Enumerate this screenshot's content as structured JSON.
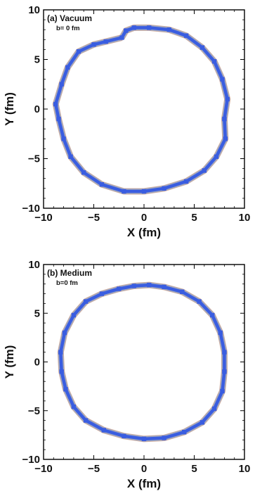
{
  "chart_data": [
    {
      "type": "scatter",
      "title": "(a) Vacuum",
      "subtitle": "b= 0 fm",
      "xlabel": "X (fm)",
      "ylabel": "Y (fm)",
      "xlim": [
        -10,
        10
      ],
      "ylim": [
        -10,
        10
      ],
      "xticks": [
        "−10",
        "−5",
        "0",
        "5",
        "10"
      ],
      "yticks": [
        "−10",
        "−5",
        "0",
        "5",
        "10"
      ],
      "grid": false,
      "colors": {
        "fill": "#3a5de0",
        "edge": "#9ea7bf",
        "rim": "#b06a4a"
      },
      "ring": [
        [
          -2.2,
          7.2
        ],
        [
          -1.8,
          7.9
        ],
        [
          -1.0,
          8.2
        ],
        [
          0.5,
          8.2
        ],
        [
          2.5,
          8.0
        ],
        [
          4.2,
          7.4
        ],
        [
          5.8,
          6.2
        ],
        [
          7.0,
          4.8
        ],
        [
          7.8,
          3.0
        ],
        [
          8.3,
          1.0
        ],
        [
          8.0,
          -1.0
        ],
        [
          8.1,
          -3.0
        ],
        [
          7.2,
          -4.8
        ],
        [
          6.0,
          -6.2
        ],
        [
          4.2,
          -7.3
        ],
        [
          2.0,
          -8.0
        ],
        [
          0.0,
          -8.3
        ],
        [
          -2.0,
          -8.3
        ],
        [
          -4.2,
          -7.6
        ],
        [
          -6.0,
          -6.4
        ],
        [
          -7.3,
          -4.8
        ],
        [
          -8.0,
          -3.0
        ],
        [
          -8.5,
          -1.0
        ],
        [
          -8.8,
          0.5
        ],
        [
          -8.2,
          2.5
        ],
        [
          -7.6,
          4.2
        ],
        [
          -6.5,
          5.8
        ],
        [
          -5.0,
          6.5
        ],
        [
          -3.8,
          6.8
        ]
      ]
    },
    {
      "type": "scatter",
      "title": "(b) Medium",
      "subtitle": "b=0 fm",
      "xlabel": "X (fm)",
      "ylabel": "Y (fm)",
      "xlim": [
        -10,
        10
      ],
      "ylim": [
        -10,
        10
      ],
      "xticks": [
        "−10",
        "−5",
        "0",
        "5",
        "10"
      ],
      "yticks": [
        "−10",
        "−5",
        "0",
        "5",
        "10"
      ],
      "grid": false,
      "colors": {
        "fill": "#3a5de0",
        "edge": "#9ea7bf",
        "rim": "#b06a4a"
      },
      "ring": [
        [
          -2.5,
          7.5
        ],
        [
          -1.0,
          7.8
        ],
        [
          0.5,
          7.9
        ],
        [
          2.0,
          7.7
        ],
        [
          3.8,
          7.2
        ],
        [
          5.5,
          6.2
        ],
        [
          6.8,
          4.8
        ],
        [
          7.6,
          3.0
        ],
        [
          8.0,
          1.0
        ],
        [
          8.0,
          -1.0
        ],
        [
          7.8,
          -3.0
        ],
        [
          7.0,
          -4.8
        ],
        [
          5.8,
          -6.2
        ],
        [
          4.0,
          -7.2
        ],
        [
          2.0,
          -7.8
        ],
        [
          0.0,
          -7.9
        ],
        [
          -2.0,
          -7.6
        ],
        [
          -4.0,
          -7.0
        ],
        [
          -5.8,
          -6.0
        ],
        [
          -7.0,
          -4.6
        ],
        [
          -7.8,
          -2.8
        ],
        [
          -8.2,
          -1.0
        ],
        [
          -8.3,
          1.0
        ],
        [
          -7.9,
          3.0
        ],
        [
          -7.0,
          4.8
        ],
        [
          -5.8,
          6.2
        ],
        [
          -4.2,
          7.0
        ]
      ]
    }
  ]
}
